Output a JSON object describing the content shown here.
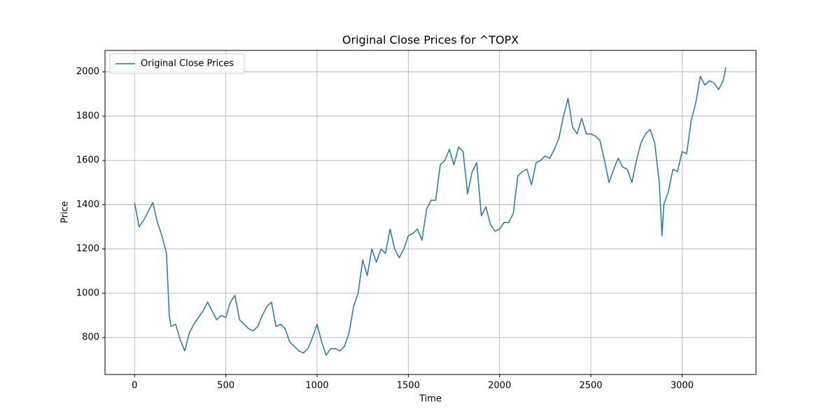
{
  "chart_data": {
    "type": "line",
    "title": "Original Close Prices for ^TOPX",
    "x_label": "Time",
    "y_label": "Price",
    "x": [
      0,
      25,
      50,
      75,
      100,
      125,
      150,
      175,
      190,
      200,
      225,
      250,
      275,
      300,
      325,
      350,
      375,
      400,
      425,
      450,
      475,
      500,
      525,
      550,
      575,
      600,
      625,
      650,
      675,
      700,
      725,
      750,
      775,
      800,
      825,
      850,
      875,
      900,
      925,
      950,
      975,
      1000,
      1025,
      1050,
      1075,
      1100,
      1125,
      1150,
      1175,
      1200,
      1225,
      1250,
      1275,
      1300,
      1325,
      1350,
      1375,
      1400,
      1425,
      1450,
      1475,
      1500,
      1525,
      1550,
      1575,
      1600,
      1625,
      1650,
      1675,
      1700,
      1725,
      1750,
      1775,
      1800,
      1825,
      1850,
      1875,
      1900,
      1925,
      1950,
      1975,
      2000,
      2025,
      2050,
      2075,
      2100,
      2125,
      2150,
      2175,
      2200,
      2225,
      2250,
      2275,
      2300,
      2325,
      2350,
      2375,
      2400,
      2425,
      2450,
      2475,
      2500,
      2525,
      2550,
      2575,
      2600,
      2625,
      2650,
      2675,
      2700,
      2725,
      2750,
      2775,
      2800,
      2825,
      2850,
      2875,
      2890,
      2900,
      2925,
      2950,
      2975,
      3000,
      3025,
      3050,
      3075,
      3100,
      3125,
      3150,
      3175,
      3200,
      3225,
      3240
    ],
    "series": [
      {
        "name": "Original Close Prices",
        "color": "#1f77b4",
        "values": [
          1410,
          1300,
          1330,
          1370,
          1410,
          1320,
          1260,
          1180,
          900,
          850,
          860,
          790,
          740,
          820,
          860,
          890,
          920,
          960,
          920,
          880,
          900,
          890,
          960,
          990,
          880,
          860,
          840,
          830,
          850,
          900,
          940,
          960,
          850,
          860,
          840,
          780,
          760,
          740,
          730,
          750,
          800,
          860,
          780,
          720,
          750,
          750,
          740,
          760,
          820,
          940,
          1000,
          1150,
          1080,
          1200,
          1140,
          1200,
          1180,
          1290,
          1200,
          1160,
          1200,
          1260,
          1270,
          1290,
          1240,
          1380,
          1420,
          1420,
          1580,
          1600,
          1650,
          1580,
          1660,
          1640,
          1450,
          1550,
          1590,
          1350,
          1390,
          1310,
          1280,
          1290,
          1320,
          1320,
          1360,
          1530,
          1550,
          1560,
          1490,
          1590,
          1600,
          1620,
          1610,
          1650,
          1700,
          1800,
          1880,
          1750,
          1720,
          1790,
          1720,
          1720,
          1710,
          1690,
          1600,
          1500,
          1560,
          1610,
          1570,
          1560,
          1500,
          1600,
          1680,
          1720,
          1740,
          1680,
          1500,
          1260,
          1400,
          1460,
          1560,
          1550,
          1640,
          1630,
          1780,
          1860,
          1980,
          1940,
          1960,
          1950,
          1920,
          1960,
          2020
        ]
      }
    ],
    "xlim": [
      -162,
      3405
    ],
    "ylim": [
      633,
      2097
    ],
    "xticks": [
      0,
      500,
      1000,
      1500,
      2000,
      2500,
      3000
    ],
    "yticks": [
      800,
      1000,
      1200,
      1400,
      1600,
      1800,
      2000
    ],
    "grid": true,
    "legend": "upper left"
  }
}
